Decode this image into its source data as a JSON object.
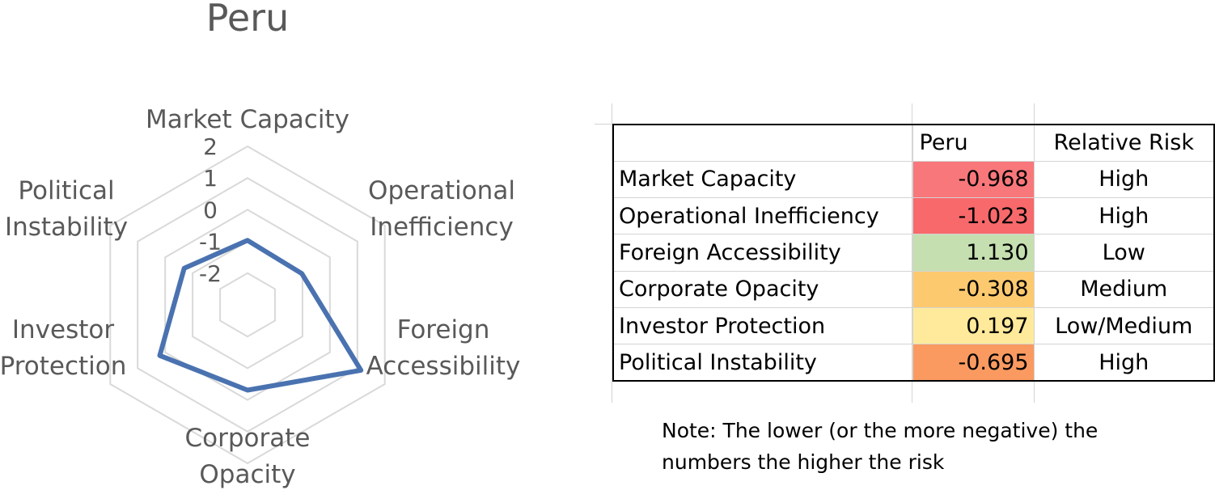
{
  "chart_data": {
    "type": "radar",
    "title": "Peru",
    "categories": [
      "Market Capacity",
      "Operational Inefficiency",
      "Foreign Accessibility",
      "Corporate Opacity",
      "Investor Protection",
      "Political Instability"
    ],
    "category_lines": [
      [
        "Market Capacity"
      ],
      [
        "Operational",
        "Inefficiency"
      ],
      [
        "Foreign",
        "Accessibility"
      ],
      [
        "Corporate",
        "Opacity"
      ],
      [
        "Investor",
        "Protection"
      ],
      [
        "Political",
        "Instability"
      ]
    ],
    "series": [
      {
        "values": [
          -0.968,
          -1.023,
          1.13,
          -0.308,
          0.197,
          -0.695
        ],
        "color": "#4a72b0"
      }
    ],
    "rlim": [
      -3,
      2
    ],
    "ticks": [
      -2,
      -1,
      0,
      1,
      2
    ],
    "tick_labels": [
      "-2",
      "-1",
      "0",
      "1",
      "2"
    ],
    "grid": true,
    "legend": "none"
  },
  "table": {
    "headers": [
      "",
      "Peru",
      "Relative Risk"
    ],
    "rows": [
      {
        "label": "Market Capacity",
        "value": "-0.968",
        "risk": "High",
        "color": "#f8777a"
      },
      {
        "label": "Operational Inefficiency",
        "value": "-1.023",
        "risk": "High",
        "color": "#f8696b"
      },
      {
        "label": "Foreign Accessibility",
        "value": "1.130",
        "risk": "Low",
        "color": "#c5dfb0"
      },
      {
        "label": "Corporate Opacity",
        "value": "-0.308",
        "risk": "Medium",
        "color": "#fdc96e"
      },
      {
        "label": "Investor Protection",
        "value": "0.197",
        "risk": "Low/Medium",
        "color": "#feea9a"
      },
      {
        "label": "Political Instability",
        "value": "-0.695",
        "risk": "High",
        "color": "#fa9a60"
      }
    ]
  },
  "note": {
    "line1": "Note: The lower (or the more negative) the",
    "line2": "numbers the higher the risk"
  }
}
